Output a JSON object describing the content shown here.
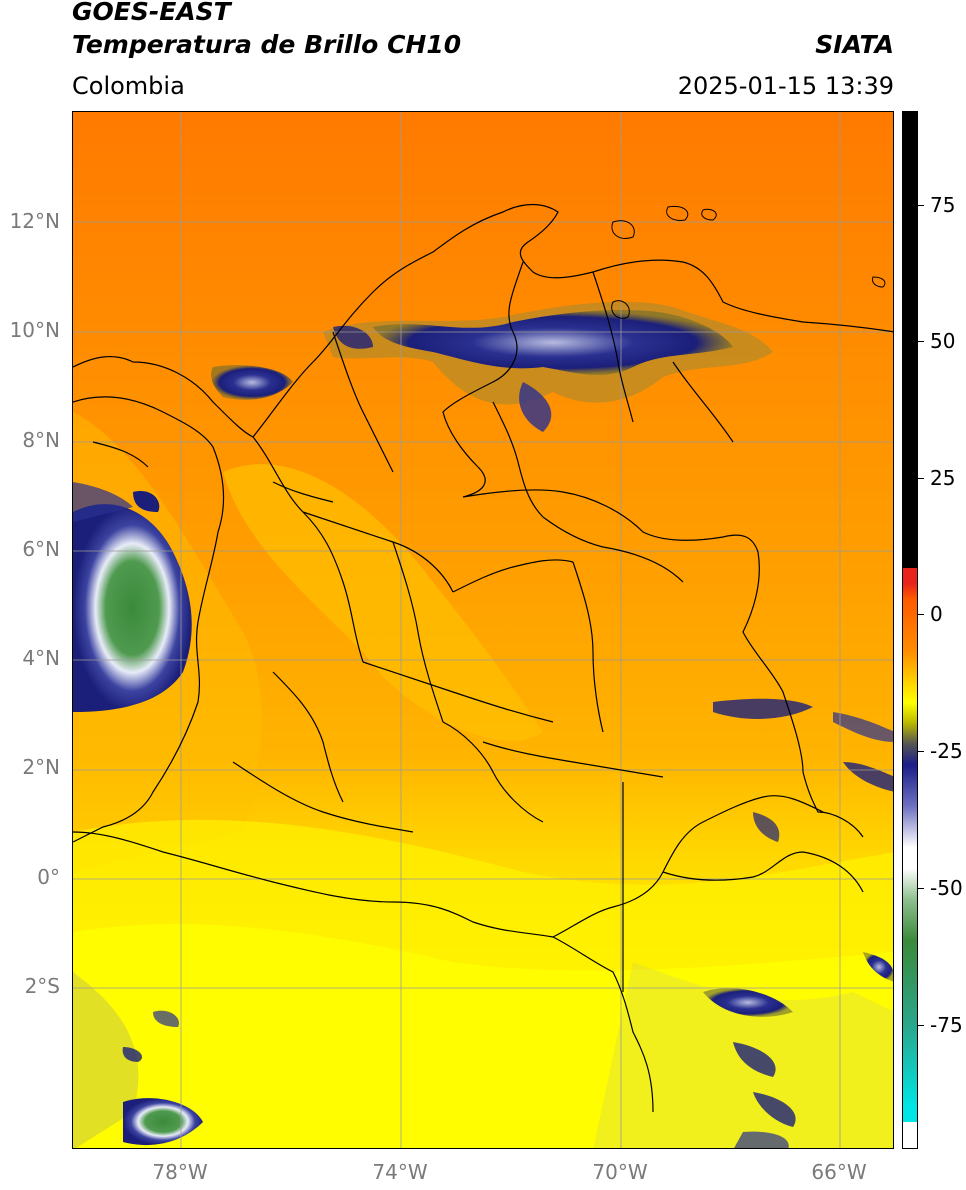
{
  "header": {
    "satellite": "GOES-EAST",
    "product": "Temperatura de Brillo CH10",
    "region": "Colombia",
    "agency": "SIATA",
    "timestamp": "2025-01-15 13:39"
  },
  "axes": {
    "lat_labels": [
      "12°N",
      "10°N",
      "8°N",
      "6°N",
      "4°N",
      "2°N",
      "0°",
      "2°S"
    ],
    "lon_labels": [
      "78°W",
      "74°W",
      "70°W",
      "66°W"
    ]
  },
  "colorbar": {
    "tick_labels": [
      "75",
      "50",
      "25",
      "0",
      "-25",
      "-50",
      "-75"
    ],
    "colors": {
      "black": "#000000",
      "red": "#e8241c",
      "orange": "#ff8c00",
      "yellow": "#ffff00",
      "navy": "#1b1f8a",
      "white": "#ffffff",
      "green": "#3a8a3a",
      "teal": "#2aa68a",
      "cyan": "#00e5e5"
    }
  },
  "map_colors": {
    "background_north": "#ff7d00",
    "background_mid": "#ff9a00",
    "background_south": "#ffe600",
    "cloud_deep": "#1e237e",
    "cloud_light": "#c8cce8",
    "cloud_core": "#3e8e3e",
    "border": "#000000",
    "gridline": "#9a9a9a"
  }
}
